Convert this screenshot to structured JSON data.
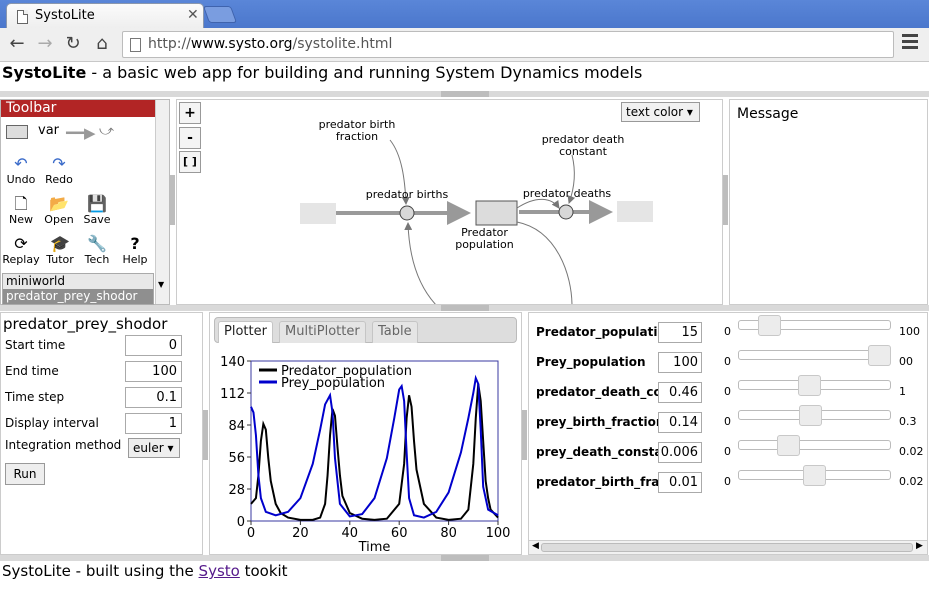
{
  "browser": {
    "tab_title": "SystoLite",
    "tab_close": "✕",
    "url_prefix": "http://",
    "url_host": "www.systo.org",
    "url_path": "/systolite.html"
  },
  "header": {
    "app_name": "SystoLite",
    "tagline": " - a basic web app for building and running System Dynamics models"
  },
  "toolbar": {
    "title": "Toolbar",
    "var_label": "var",
    "undo": "Undo",
    "redo": "Redo",
    "new": "New",
    "open": "Open",
    "save": "Save",
    "replay": "Replay",
    "tutor": "Tutor",
    "tech": "Tech",
    "help": "Help",
    "models": [
      "miniworld",
      "predator_prey_shodor"
    ]
  },
  "diagram": {
    "zoom_in": "+",
    "zoom_out": "-",
    "zoom_fit": "[ ]",
    "text_color": "text color ▾",
    "labels": {
      "birth_fraction_1": "predator birth",
      "birth_fraction_2": "fraction",
      "death_constant_1": "predator death",
      "death_constant_2": "constant",
      "births": "predator births",
      "deaths": "predator deaths",
      "population_1": "Predator",
      "population_2": "population"
    }
  },
  "message": {
    "title": "Message"
  },
  "params": {
    "model_name": "predator_prey_shodor",
    "rows": [
      {
        "label": "Start time",
        "value": "0"
      },
      {
        "label": "End time",
        "value": "100"
      },
      {
        "label": "Time step",
        "value": "0.1"
      },
      {
        "label": "Display interval",
        "value": "1"
      }
    ],
    "method_label": "Integration method",
    "method_value": "euler ▾",
    "run_label": "Run"
  },
  "plotter": {
    "tabs": [
      "Plotter",
      "MultiPlotter",
      "Table"
    ],
    "active_tab": "Plotter"
  },
  "chart_data": {
    "type": "line",
    "title": "",
    "xlabel": "Time",
    "ylabel": "",
    "xlim": [
      0,
      100
    ],
    "ylim": [
      0,
      140
    ],
    "xticks": [
      0,
      20,
      40,
      60,
      80,
      100
    ],
    "yticks": [
      0,
      28,
      56,
      84,
      112,
      140
    ],
    "legend": "top-left",
    "series": [
      {
        "name": "Predator_population",
        "color": "#000000",
        "x": [
          0,
          2,
          3,
          4,
          5,
          6,
          7,
          8,
          10,
          12,
          15,
          20,
          25,
          28,
          30,
          31,
          32,
          33,
          34,
          35,
          36,
          37,
          40,
          45,
          50,
          55,
          60,
          62,
          63,
          64,
          65,
          66,
          67,
          70,
          75,
          80,
          85,
          88,
          90,
          91,
          92,
          93,
          94,
          95,
          96,
          97,
          100
        ],
        "y": [
          15,
          20,
          40,
          70,
          85,
          80,
          55,
          35,
          15,
          7,
          3,
          1,
          1,
          3,
          15,
          40,
          75,
          98,
          92,
          65,
          40,
          22,
          7,
          2,
          1,
          2,
          15,
          50,
          90,
          110,
          100,
          70,
          45,
          15,
          3,
          1,
          2,
          10,
          50,
          90,
          120,
          105,
          70,
          35,
          20,
          10,
          3
        ]
      },
      {
        "name": "Prey_population",
        "color": "#0000cc",
        "x": [
          0,
          1,
          2,
          3,
          4,
          6,
          10,
          15,
          20,
          25,
          28,
          30,
          32,
          33,
          34,
          36,
          40,
          45,
          50,
          55,
          58,
          60,
          61,
          62,
          63,
          64,
          66,
          70,
          75,
          80,
          85,
          88,
          90,
          91,
          92,
          93,
          94,
          96,
          100
        ],
        "y": [
          100,
          95,
          75,
          40,
          20,
          8,
          5,
          8,
          20,
          50,
          80,
          102,
          110,
          95,
          55,
          15,
          4,
          6,
          20,
          55,
          90,
          115,
          118,
          105,
          60,
          20,
          5,
          3,
          8,
          25,
          60,
          90,
          112,
          125,
          120,
          80,
          30,
          10,
          5
        ]
      }
    ]
  },
  "sliders": [
    {
      "label": "Predator_populatio",
      "value": "15",
      "min": "0",
      "max": "100",
      "pos": 0.15
    },
    {
      "label": "Prey_population",
      "value": "100",
      "min": "0",
      "max": "00",
      "pos": 1.0
    },
    {
      "label": "predator_death_cor",
      "value": "0.46",
      "min": "0",
      "max": "1",
      "pos": 0.46
    },
    {
      "label": "prey_birth_fraction",
      "value": "0.14",
      "min": "0",
      "max": "0.3",
      "pos": 0.47
    },
    {
      "label": "prey_death_constar",
      "value": "0.006",
      "min": "0",
      "max": "0.02",
      "pos": 0.3
    },
    {
      "label": "predator_birth_fract",
      "value": "0.01",
      "min": "0",
      "max": "0.02",
      "pos": 0.5
    }
  ],
  "footer": {
    "prefix": "SystoLite - built using the ",
    "link": "Systo",
    "suffix": " tookit"
  }
}
